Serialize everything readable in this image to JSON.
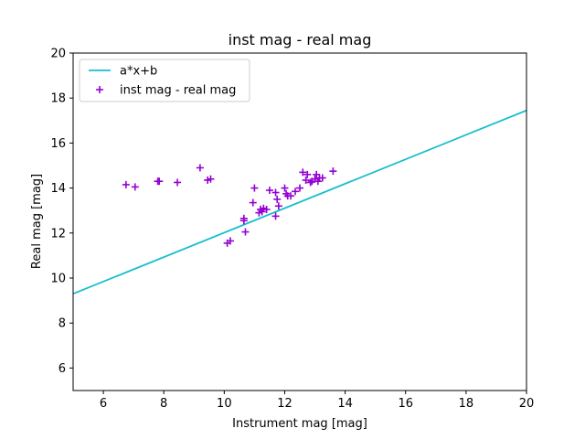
{
  "chart_data": {
    "type": "scatter",
    "title": "inst mag - real mag",
    "xlabel": "Instrument mag [mag]",
    "ylabel": "Real mag [mag]",
    "xlim": [
      5,
      20
    ],
    "ylim": [
      5,
      20
    ],
    "xticks": [
      6,
      8,
      10,
      12,
      14,
      16,
      18,
      20
    ],
    "yticks": [
      6,
      8,
      10,
      12,
      14,
      16,
      18,
      20
    ],
    "grid": false,
    "legend_position": "upper-left",
    "series": [
      {
        "name": "a*x+b",
        "kind": "line",
        "color": "#17becf",
        "x": [
          5,
          20
        ],
        "y": [
          9.3,
          17.45
        ]
      },
      {
        "name": "inst mag - real mag",
        "kind": "scatter",
        "marker": "+",
        "color": "#9400d3",
        "x": [
          6.75,
          7.05,
          7.8,
          7.85,
          8.45,
          9.2,
          9.45,
          9.55,
          10.1,
          10.2,
          10.65,
          10.65,
          10.7,
          10.95,
          11.0,
          11.15,
          11.2,
          11.25,
          11.3,
          11.4,
          11.5,
          11.7,
          11.7,
          11.75,
          11.8,
          12.0,
          12.05,
          12.1,
          12.2,
          12.35,
          12.5,
          12.6,
          12.7,
          12.75,
          12.85,
          12.9,
          13.0,
          13.05,
          13.1,
          13.15,
          13.25,
          13.6
        ],
        "y": [
          14.15,
          14.05,
          14.3,
          14.3,
          14.25,
          14.9,
          14.35,
          14.4,
          11.55,
          11.65,
          12.55,
          12.65,
          12.05,
          13.35,
          14.0,
          12.9,
          13.05,
          12.95,
          13.1,
          13.05,
          13.9,
          12.75,
          13.8,
          13.5,
          13.2,
          14.0,
          13.75,
          13.65,
          13.65,
          13.85,
          14.0,
          14.7,
          14.35,
          14.6,
          14.25,
          14.3,
          14.4,
          14.6,
          14.3,
          14.45,
          14.45,
          14.75
        ]
      }
    ]
  }
}
